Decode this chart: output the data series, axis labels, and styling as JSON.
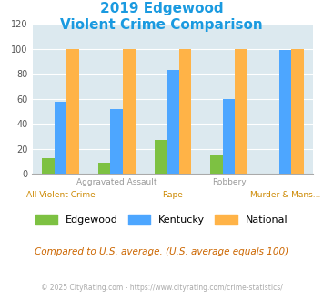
{
  "title_line1": "2019 Edgewood",
  "title_line2": "Violent Crime Comparison",
  "title_color": "#1a9ae0",
  "categories": [
    "All Violent Crime",
    "Aggravated Assault",
    "Rape",
    "Robbery",
    "Murder & Mans..."
  ],
  "labels_top": [
    "",
    "Aggravated Assault",
    "",
    "Robbery",
    ""
  ],
  "labels_bot": [
    "All Violent Crime",
    "",
    "Rape",
    "",
    "Murder & Mans..."
  ],
  "edgewood": [
    13,
    9,
    27,
    15,
    0
  ],
  "kentucky": [
    58,
    52,
    83,
    60,
    99
  ],
  "national": [
    100,
    100,
    100,
    100,
    100
  ],
  "edgewood_color": "#7dc142",
  "kentucky_color": "#4da6ff",
  "national_color": "#ffb347",
  "ylim": [
    0,
    120
  ],
  "yticks": [
    0,
    20,
    40,
    60,
    80,
    100,
    120
  ],
  "bg_color": "#dce9ef",
  "note": "Compared to U.S. average. (U.S. average equals 100)",
  "note_color": "#cc6600",
  "copyright": "© 2025 CityRating.com - https://www.cityrating.com/crime-statistics/",
  "copyright_color": "#aaaaaa",
  "bar_width": 0.22
}
